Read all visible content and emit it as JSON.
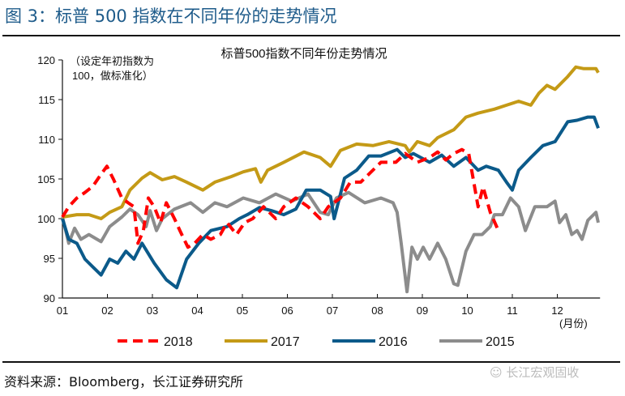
{
  "figure_title": "图 3：标普 500 指数在不同年份的走势情况",
  "source": "资料来源：Bloomberg，长江证券研究所",
  "watermark": "长江宏观固收",
  "chart_data": {
    "type": "line",
    "title": "标普500指数不同年份走势情况",
    "annotation": [
      "（设定年初指数为",
      "100，做标准化）"
    ],
    "xlabel": "(月份)",
    "ylabel": "",
    "x_ticks": [
      "01",
      "02",
      "03",
      "04",
      "05",
      "06",
      "07",
      "08",
      "09",
      "10",
      "11",
      "12"
    ],
    "xlim": [
      1,
      12.95
    ],
    "ylim": [
      90,
      120
    ],
    "y_ticks": [
      90,
      95,
      100,
      105,
      110,
      115,
      120
    ],
    "grid": false,
    "legend_position": "bottom",
    "series": [
      {
        "name": "2018",
        "color": "#ff0000",
        "style": "dashed",
        "points": [
          [
            1,
            100.2
          ],
          [
            1.14,
            101.5
          ],
          [
            1.32,
            102.6
          ],
          [
            1.5,
            103.3
          ],
          [
            1.68,
            104.1
          ],
          [
            1.86,
            105.6
          ],
          [
            1.99,
            106.6
          ],
          [
            2.14,
            104.9
          ],
          [
            2.32,
            102.6
          ],
          [
            2.46,
            102.0
          ],
          [
            2.59,
            101.5
          ],
          [
            2.68,
            96.9
          ],
          [
            2.8,
            98.5
          ],
          [
            2.91,
            102.6
          ],
          [
            3.04,
            101.5
          ],
          [
            3.18,
            99.5
          ],
          [
            3.31,
            102.0
          ],
          [
            3.49,
            100.0
          ],
          [
            3.61,
            98.5
          ],
          [
            3.79,
            96.4
          ],
          [
            3.94,
            96.9
          ],
          [
            4.12,
            98.0
          ],
          [
            4.3,
            97.4
          ],
          [
            4.51,
            98.0
          ],
          [
            4.66,
            99.5
          ],
          [
            4.87,
            98.0
          ],
          [
            5.05,
            99.5
          ],
          [
            5.23,
            100.0
          ],
          [
            5.47,
            101.5
          ],
          [
            5.74,
            100.0
          ],
          [
            5.92,
            101.5
          ],
          [
            6.19,
            102.6
          ],
          [
            6.46,
            101.5
          ],
          [
            6.73,
            100.0
          ],
          [
            6.91,
            101.5
          ],
          [
            7.18,
            102.6
          ],
          [
            7.4,
            104.6
          ],
          [
            7.63,
            104.6
          ],
          [
            7.81,
            105.6
          ],
          [
            8.08,
            107.1
          ],
          [
            8.41,
            107.1
          ],
          [
            8.62,
            108.2
          ],
          [
            8.89,
            107.1
          ],
          [
            9.16,
            107.7
          ],
          [
            9.34,
            108.4
          ],
          [
            9.52,
            107.4
          ],
          [
            9.7,
            108.2
          ],
          [
            9.88,
            108.7
          ],
          [
            10.03,
            108.2
          ],
          [
            10.24,
            101.5
          ],
          [
            10.35,
            104.0
          ],
          [
            10.51,
            100.8
          ],
          [
            10.69,
            98.5
          ]
        ]
      },
      {
        "name": "2017",
        "color": "#c49a16",
        "style": "solid",
        "points": [
          [
            1,
            100.2
          ],
          [
            1.32,
            100.5
          ],
          [
            1.59,
            100.5
          ],
          [
            1.86,
            100.0
          ],
          [
            2.05,
            100.8
          ],
          [
            2.32,
            101.5
          ],
          [
            2.5,
            103.6
          ],
          [
            2.77,
            105.1
          ],
          [
            2.95,
            105.8
          ],
          [
            3.22,
            104.9
          ],
          [
            3.49,
            105.3
          ],
          [
            3.76,
            104.6
          ],
          [
            4.12,
            103.6
          ],
          [
            4.39,
            104.6
          ],
          [
            4.75,
            105.3
          ],
          [
            5.02,
            105.9
          ],
          [
            5.29,
            106.3
          ],
          [
            5.41,
            104.6
          ],
          [
            5.56,
            106.1
          ],
          [
            5.92,
            107.1
          ],
          [
            6.37,
            108.4
          ],
          [
            6.73,
            107.7
          ],
          [
            6.96,
            106.6
          ],
          [
            7.18,
            108.6
          ],
          [
            7.54,
            109.4
          ],
          [
            7.9,
            109.2
          ],
          [
            8.26,
            109.7
          ],
          [
            8.62,
            109.2
          ],
          [
            8.71,
            108.4
          ],
          [
            8.89,
            109.7
          ],
          [
            9.16,
            109.2
          ],
          [
            9.34,
            110.2
          ],
          [
            9.7,
            111.2
          ],
          [
            9.97,
            112.8
          ],
          [
            10.24,
            113.3
          ],
          [
            10.6,
            113.8
          ],
          [
            10.87,
            114.3
          ],
          [
            11.14,
            114.8
          ],
          [
            11.41,
            114.3
          ],
          [
            11.59,
            115.8
          ],
          [
            11.77,
            116.8
          ],
          [
            11.95,
            116.3
          ],
          [
            12.23,
            117.9
          ],
          [
            12.41,
            119.1
          ],
          [
            12.59,
            118.9
          ],
          [
            12.86,
            118.9
          ],
          [
            12.91,
            118.4
          ]
        ]
      },
      {
        "name": "2016",
        "color": "#0b5a8a",
        "style": "solid",
        "points": [
          [
            1,
            100.0
          ],
          [
            1.14,
            97.4
          ],
          [
            1.32,
            96.9
          ],
          [
            1.5,
            94.9
          ],
          [
            1.68,
            93.9
          ],
          [
            1.86,
            92.9
          ],
          [
            2.05,
            94.9
          ],
          [
            2.23,
            94.4
          ],
          [
            2.41,
            95.9
          ],
          [
            2.59,
            94.9
          ],
          [
            2.77,
            96.9
          ],
          [
            3.04,
            94.4
          ],
          [
            3.31,
            92.3
          ],
          [
            3.54,
            91.3
          ],
          [
            3.76,
            94.9
          ],
          [
            4.03,
            96.9
          ],
          [
            4.3,
            98.5
          ],
          [
            4.66,
            99.0
          ],
          [
            4.93,
            100.0
          ],
          [
            5.11,
            100.5
          ],
          [
            5.38,
            101.4
          ],
          [
            5.65,
            101.0
          ],
          [
            5.92,
            100.5
          ],
          [
            6.19,
            101.2
          ],
          [
            6.42,
            103.6
          ],
          [
            6.73,
            103.6
          ],
          [
            6.96,
            102.8
          ],
          [
            7.04,
            100.0
          ],
          [
            7.27,
            105.1
          ],
          [
            7.54,
            106.1
          ],
          [
            7.81,
            107.9
          ],
          [
            8.08,
            107.9
          ],
          [
            8.44,
            108.7
          ],
          [
            8.62,
            107.7
          ],
          [
            8.8,
            108.2
          ],
          [
            9.16,
            107.1
          ],
          [
            9.43,
            108.0
          ],
          [
            9.7,
            106.6
          ],
          [
            9.97,
            107.7
          ],
          [
            10.24,
            106.1
          ],
          [
            10.42,
            106.6
          ],
          [
            10.69,
            106.1
          ],
          [
            10.87,
            104.6
          ],
          [
            11.0,
            103.6
          ],
          [
            11.14,
            106.1
          ],
          [
            11.41,
            107.7
          ],
          [
            11.68,
            109.2
          ],
          [
            11.95,
            109.7
          ],
          [
            12.23,
            112.2
          ],
          [
            12.44,
            112.4
          ],
          [
            12.68,
            112.8
          ],
          [
            12.82,
            112.8
          ],
          [
            12.91,
            111.4
          ]
        ]
      },
      {
        "name": "2015",
        "color": "#8c8c8c",
        "style": "solid",
        "points": [
          [
            1,
            100.2
          ],
          [
            1.14,
            96.9
          ],
          [
            1.27,
            98.8
          ],
          [
            1.41,
            97.4
          ],
          [
            1.59,
            98.0
          ],
          [
            1.77,
            97.4
          ],
          [
            1.86,
            97.1
          ],
          [
            2.05,
            99.0
          ],
          [
            2.32,
            100.2
          ],
          [
            2.5,
            101.2
          ],
          [
            2.68,
            100.5
          ],
          [
            2.86,
            99.0
          ],
          [
            2.95,
            101.0
          ],
          [
            3.09,
            98.5
          ],
          [
            3.22,
            100.0
          ],
          [
            3.49,
            101.2
          ],
          [
            3.85,
            102.0
          ],
          [
            4.12,
            100.8
          ],
          [
            4.39,
            102.0
          ],
          [
            4.66,
            101.5
          ],
          [
            5.02,
            102.6
          ],
          [
            5.38,
            102.0
          ],
          [
            5.74,
            103.1
          ],
          [
            6.1,
            102.2
          ],
          [
            6.46,
            103.1
          ],
          [
            6.73,
            100.8
          ],
          [
            6.91,
            100.5
          ],
          [
            7.09,
            102.6
          ],
          [
            7.36,
            103.3
          ],
          [
            7.72,
            102.0
          ],
          [
            8.08,
            102.6
          ],
          [
            8.35,
            102.0
          ],
          [
            8.44,
            100.8
          ],
          [
            8.53,
            96.9
          ],
          [
            8.66,
            90.8
          ],
          [
            8.77,
            96.4
          ],
          [
            8.89,
            94.9
          ],
          [
            9.02,
            96.4
          ],
          [
            9.16,
            94.9
          ],
          [
            9.34,
            96.9
          ],
          [
            9.52,
            94.9
          ],
          [
            9.7,
            91.8
          ],
          [
            9.79,
            91.6
          ],
          [
            9.97,
            95.9
          ],
          [
            10.15,
            98.0
          ],
          [
            10.33,
            98.0
          ],
          [
            10.51,
            99.0
          ],
          [
            10.6,
            100.5
          ],
          [
            10.78,
            100.5
          ],
          [
            10.96,
            102.6
          ],
          [
            11.14,
            101.5
          ],
          [
            11.29,
            98.5
          ],
          [
            11.5,
            101.5
          ],
          [
            11.77,
            101.5
          ],
          [
            11.95,
            102.2
          ],
          [
            12.05,
            99.5
          ],
          [
            12.19,
            100.5
          ],
          [
            12.32,
            98.0
          ],
          [
            12.44,
            98.5
          ],
          [
            12.55,
            97.4
          ],
          [
            12.68,
            99.8
          ],
          [
            12.86,
            100.8
          ],
          [
            12.91,
            99.5
          ]
        ]
      }
    ]
  }
}
